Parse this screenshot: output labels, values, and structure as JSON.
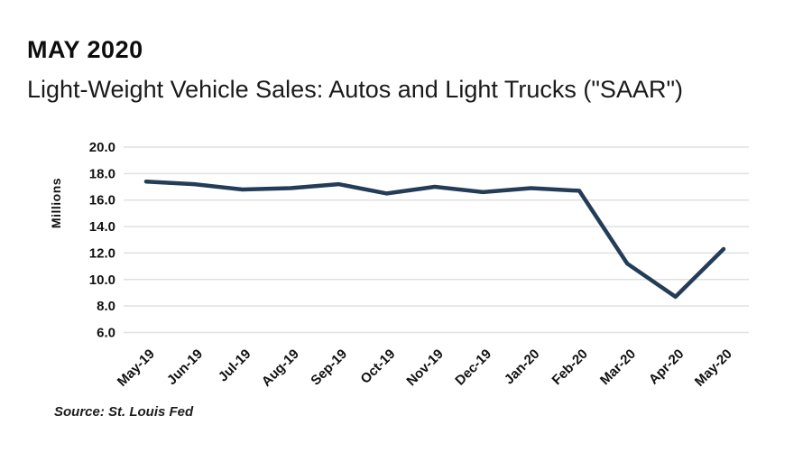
{
  "header": {
    "kicker": "MAY 2020",
    "title": "Light-Weight Vehicle Sales: Autos and Light Trucks (\"SAAR\")"
  },
  "source_note": "Source: St. Louis Fed",
  "chart_data": {
    "type": "line",
    "title": "Light-Weight Vehicle Sales: Autos and Light Trucks (\"SAAR\")",
    "categories": [
      "May-19",
      "Jun-19",
      "Jul-19",
      "Aug-19",
      "Sep-19",
      "Oct-19",
      "Nov-19",
      "Dec-19",
      "Jan-20",
      "Feb-20",
      "Mar-20",
      "Apr-20",
      "May-20"
    ],
    "values": [
      17.4,
      17.2,
      16.8,
      16.9,
      17.2,
      16.5,
      17.0,
      16.6,
      16.9,
      16.7,
      11.2,
      8.7,
      12.3
    ],
    "xlabel": "",
    "ylabel": "Millions",
    "ylim": [
      6.0,
      20.0
    ],
    "ytick_step": 2.0,
    "ytick_format_decimals": 1,
    "grid": true,
    "legend": false,
    "colors": {
      "line": "#233c58",
      "grid": "#e0e0e0",
      "text": "#111111"
    }
  }
}
